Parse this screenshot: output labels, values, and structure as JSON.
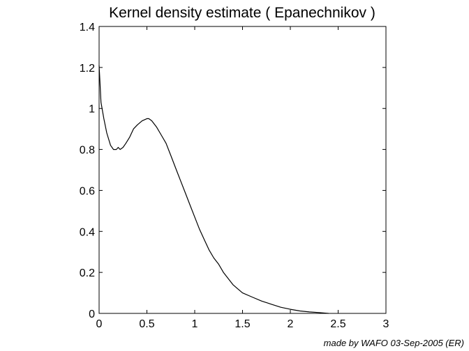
{
  "chart_data": {
    "type": "line",
    "title": "Kernel density estimate ( Epanechnikov )",
    "xlabel": "",
    "ylabel": "",
    "xlim": [
      0,
      3
    ],
    "ylim": [
      0,
      1.4
    ],
    "x_ticks": [
      0,
      0.5,
      1,
      1.5,
      2,
      2.5,
      3
    ],
    "x_tick_labels": [
      "0",
      "0.5",
      "1",
      "1.5",
      "2",
      "2.5",
      "3"
    ],
    "y_ticks": [
      0,
      0.2,
      0.4,
      0.6,
      0.8,
      1.0,
      1.2,
      1.4
    ],
    "y_tick_labels": [
      "0",
      "0.2",
      "0.4",
      "0.6",
      "0.8",
      "1",
      "1.2",
      "1.4"
    ],
    "grid": false,
    "series": [
      {
        "x": [
          0.0,
          0.02,
          0.05,
          0.08,
          0.12,
          0.15,
          0.18,
          0.2,
          0.22,
          0.25,
          0.28,
          0.32,
          0.36,
          0.4,
          0.45,
          0.5,
          0.52,
          0.55,
          0.6,
          0.65,
          0.7,
          0.75,
          0.8,
          0.85,
          0.9,
          0.95,
          1.0,
          1.05,
          1.1,
          1.15,
          1.2,
          1.25,
          1.3,
          1.35,
          1.4,
          1.45,
          1.5,
          1.6,
          1.7,
          1.8,
          1.9,
          2.0,
          2.1,
          2.2,
          2.3,
          2.4
        ],
        "y": [
          1.21,
          1.03,
          0.95,
          0.88,
          0.82,
          0.8,
          0.8,
          0.81,
          0.8,
          0.81,
          0.83,
          0.86,
          0.9,
          0.92,
          0.94,
          0.95,
          0.95,
          0.94,
          0.91,
          0.87,
          0.83,
          0.77,
          0.71,
          0.65,
          0.59,
          0.53,
          0.47,
          0.41,
          0.36,
          0.31,
          0.27,
          0.24,
          0.2,
          0.17,
          0.14,
          0.12,
          0.1,
          0.08,
          0.06,
          0.045,
          0.03,
          0.02,
          0.012,
          0.007,
          0.004,
          0.0
        ]
      }
    ],
    "line_color": "#000000"
  },
  "footer": {
    "credit": "made by WAFO 03-Sep-2005 (ER)"
  }
}
